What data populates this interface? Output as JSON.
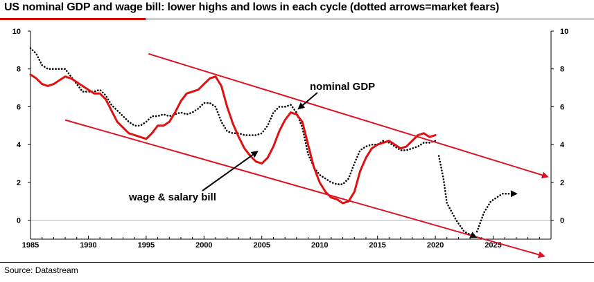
{
  "header": {
    "title": "US nominal GDP and wage bill: lower highs and lows in each cycle (dotted arrows=market fears)"
  },
  "footer": {
    "source": "Source: Datastream"
  },
  "colors": {
    "wage_line": "#e01010",
    "gdp_line": "#000000",
    "trend_arrows": "#dd1122",
    "axis": "#000000",
    "zero_line": "#b0b0b0"
  },
  "chart_data": {
    "type": "line",
    "title": "US nominal GDP and wage bill: lower highs and lows in each cycle (dotted arrows=market fears)",
    "xlabel": "",
    "ylabel": "",
    "xlim": [
      1985,
      2030
    ],
    "ylim": [
      -1,
      10
    ],
    "x_ticks": [
      1985,
      1990,
      1995,
      2000,
      2005,
      2010,
      2015,
      2020,
      2025
    ],
    "y_ticks": [
      0,
      2,
      4,
      6,
      8,
      10
    ],
    "grid": false,
    "legend": "none",
    "series": [
      {
        "name": "nominal GDP",
        "style": "dotted",
        "color": "#000000",
        "points": [
          [
            1985,
            9.1
          ],
          [
            1985.5,
            8.8
          ],
          [
            1986,
            8.2
          ],
          [
            1986.5,
            8.0
          ],
          [
            1987,
            8.0
          ],
          [
            1987.5,
            8.0
          ],
          [
            1988,
            8.0
          ],
          [
            1988.5,
            7.6
          ],
          [
            1989,
            7.2
          ],
          [
            1989.5,
            6.8
          ],
          [
            1990,
            6.8
          ],
          [
            1990.5,
            6.8
          ],
          [
            1991,
            6.9
          ],
          [
            1991.5,
            6.6
          ],
          [
            1992,
            6.1
          ],
          [
            1992.5,
            5.8
          ],
          [
            1993,
            5.5
          ],
          [
            1993.5,
            5.2
          ],
          [
            1994,
            5.0
          ],
          [
            1994.5,
            5.0
          ],
          [
            1995,
            5.2
          ],
          [
            1995.5,
            5.5
          ],
          [
            1996,
            5.5
          ],
          [
            1996.5,
            5.6
          ],
          [
            1997,
            5.5
          ],
          [
            1997.5,
            5.6
          ],
          [
            1998,
            5.7
          ],
          [
            1998.5,
            5.6
          ],
          [
            1999,
            5.7
          ],
          [
            1999.5,
            5.9
          ],
          [
            2000,
            6.2
          ],
          [
            2000.5,
            6.2
          ],
          [
            2001,
            6.0
          ],
          [
            2001.5,
            5.2
          ],
          [
            2002,
            4.7
          ],
          [
            2002.5,
            4.6
          ],
          [
            2003,
            4.6
          ],
          [
            2003.5,
            4.5
          ],
          [
            2004,
            4.5
          ],
          [
            2004.5,
            4.5
          ],
          [
            2005,
            4.6
          ],
          [
            2005.5,
            5.0
          ],
          [
            2006,
            5.7
          ],
          [
            2006.5,
            6.0
          ],
          [
            2007,
            6.0
          ],
          [
            2007.5,
            6.1
          ],
          [
            2008,
            5.7
          ],
          [
            2008.5,
            4.9
          ],
          [
            2009,
            3.5
          ],
          [
            2009.5,
            2.8
          ],
          [
            2010,
            2.4
          ],
          [
            2010.5,
            2.2
          ],
          [
            2011,
            2.0
          ],
          [
            2011.5,
            1.9
          ],
          [
            2012,
            1.9
          ],
          [
            2012.5,
            2.2
          ],
          [
            2013,
            3.0
          ],
          [
            2013.5,
            3.7
          ],
          [
            2014,
            3.9
          ],
          [
            2014.5,
            4.0
          ],
          [
            2015,
            4.0
          ],
          [
            2015.5,
            4.2
          ],
          [
            2016,
            4.1
          ],
          [
            2016.5,
            3.9
          ],
          [
            2017,
            3.7
          ],
          [
            2017.5,
            3.7
          ],
          [
            2018,
            3.8
          ],
          [
            2018.5,
            3.9
          ],
          [
            2019,
            4.1
          ],
          [
            2019.5,
            4.1
          ],
          [
            2020,
            4.2
          ]
        ]
      },
      {
        "name": "wage & salary bill",
        "style": "solid",
        "color": "#e01010",
        "points": [
          [
            1985,
            7.7
          ],
          [
            1985.5,
            7.5
          ],
          [
            1986,
            7.2
          ],
          [
            1986.5,
            7.1
          ],
          [
            1987,
            7.2
          ],
          [
            1987.5,
            7.4
          ],
          [
            1988,
            7.6
          ],
          [
            1988.5,
            7.5
          ],
          [
            1989,
            7.3
          ],
          [
            1989.5,
            7.1
          ],
          [
            1990,
            6.9
          ],
          [
            1990.5,
            6.7
          ],
          [
            1991,
            6.7
          ],
          [
            1991.5,
            6.4
          ],
          [
            1992,
            5.8
          ],
          [
            1992.5,
            5.2
          ],
          [
            1993,
            4.9
          ],
          [
            1993.5,
            4.6
          ],
          [
            1994,
            4.5
          ],
          [
            1994.5,
            4.4
          ],
          [
            1995,
            4.3
          ],
          [
            1995.5,
            4.6
          ],
          [
            1996,
            5.0
          ],
          [
            1996.5,
            5.0
          ],
          [
            1997,
            5.2
          ],
          [
            1997.5,
            5.7
          ],
          [
            1998,
            6.3
          ],
          [
            1998.5,
            6.7
          ],
          [
            1999,
            6.8
          ],
          [
            1999.5,
            6.9
          ],
          [
            2000,
            7.2
          ],
          [
            2000.5,
            7.5
          ],
          [
            2001,
            7.6
          ],
          [
            2001.5,
            7.1
          ],
          [
            2002,
            6.0
          ],
          [
            2002.5,
            5.1
          ],
          [
            2003,
            4.4
          ],
          [
            2003.5,
            3.8
          ],
          [
            2004,
            3.4
          ],
          [
            2004.5,
            3.1
          ],
          [
            2005,
            3.0
          ],
          [
            2005.5,
            3.3
          ],
          [
            2006,
            3.9
          ],
          [
            2006.5,
            4.7
          ],
          [
            2007,
            5.3
          ],
          [
            2007.5,
            5.7
          ],
          [
            2008,
            5.6
          ],
          [
            2008.5,
            5.2
          ],
          [
            2009,
            4.0
          ],
          [
            2009.5,
            2.8
          ],
          [
            2010,
            2.0
          ],
          [
            2010.5,
            1.5
          ],
          [
            2011,
            1.2
          ],
          [
            2011.5,
            1.1
          ],
          [
            2012,
            0.9
          ],
          [
            2012.5,
            1.0
          ],
          [
            2013,
            1.5
          ],
          [
            2013.5,
            2.6
          ],
          [
            2014,
            3.3
          ],
          [
            2014.5,
            3.8
          ],
          [
            2015,
            4.0
          ],
          [
            2015.5,
            4.1
          ],
          [
            2016,
            4.2
          ],
          [
            2016.5,
            4.0
          ],
          [
            2017,
            3.8
          ],
          [
            2017.5,
            3.9
          ],
          [
            2018,
            4.2
          ],
          [
            2018.5,
            4.5
          ],
          [
            2019,
            4.6
          ],
          [
            2019.5,
            4.4
          ],
          [
            2020,
            4.5
          ]
        ]
      }
    ],
    "trend_arrows": [
      {
        "name": "upper channel",
        "from": [
          1995.2,
          8.8
        ],
        "to": [
          2029.7,
          2.3
        ]
      },
      {
        "name": "lower channel",
        "from": [
          1988,
          5.3
        ],
        "to": [
          2029.4,
          -1.9
        ]
      }
    ],
    "fear_arrows": [
      {
        "name": "market fear path",
        "points": [
          [
            2020.3,
            3.4
          ],
          [
            2020.7,
            2.2
          ],
          [
            2021,
            0.9
          ],
          [
            2021.8,
            0.0
          ],
          [
            2022.5,
            -0.6
          ],
          [
            2023.5,
            -0.9
          ]
        ]
      },
      {
        "name": "market fear rebound",
        "points": [
          [
            2023.6,
            -0.6
          ],
          [
            2024.2,
            0.4
          ],
          [
            2024.8,
            1.0
          ],
          [
            2025.8,
            1.4
          ],
          [
            2027,
            1.4
          ]
        ]
      }
    ],
    "annotations": [
      {
        "text": "nominal GDP",
        "points_to": [
          2008,
          5.9
        ]
      },
      {
        "text": "wage & salary bill",
        "points_to": [
          2004.6,
          3.7
        ]
      }
    ]
  }
}
